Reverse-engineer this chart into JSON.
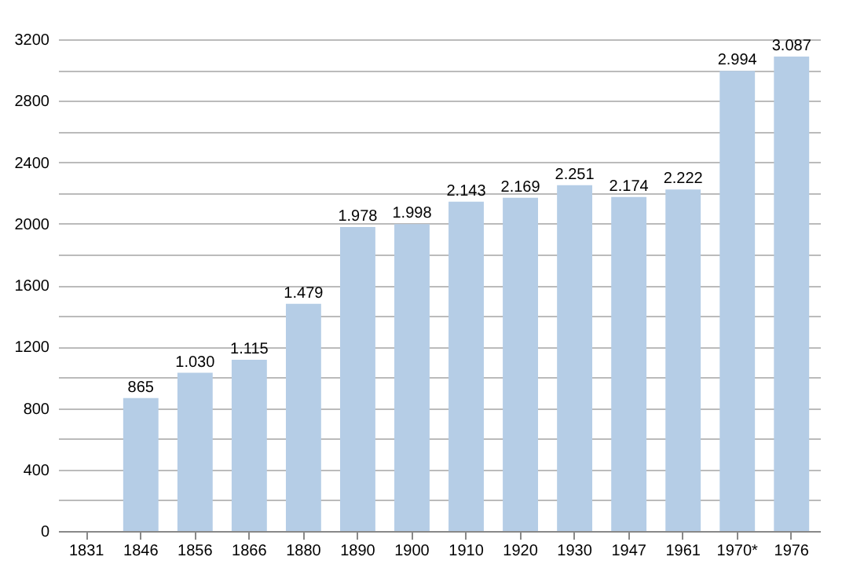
{
  "chart_data": {
    "type": "bar",
    "categories": [
      "1831",
      "1846",
      "1856",
      "1866",
      "1880",
      "1890",
      "1900",
      "1910",
      "1920",
      "1930",
      "1947",
      "1961",
      "1970*",
      "1976"
    ],
    "values": [
      null,
      865,
      1030,
      1115,
      1479,
      1978,
      1998,
      2143,
      2169,
      2251,
      2174,
      2222,
      2994,
      3087
    ],
    "value_labels": [
      null,
      "865",
      "1.030",
      "1.115",
      "1.479",
      "1.978",
      "1.998",
      "2.143",
      "2.169",
      "2.251",
      "2.174",
      "2.222",
      "2.994",
      "3.087"
    ],
    "color": "#b5cde6",
    "ylim": [
      0,
      3200
    ],
    "yticks": [
      0,
      {
        "value": 200,
        "label": null
      },
      400,
      {
        "value": 600,
        "label": null
      },
      800,
      {
        "value": 1000,
        "label": null
      },
      1200,
      {
        "value": 1400,
        "label": null
      },
      1600,
      {
        "value": 1800,
        "label": null
      },
      2000,
      {
        "value": 2200,
        "label": null
      },
      2400,
      {
        "value": 2600,
        "label": null
      },
      2800,
      {
        "value": 3000,
        "label": null
      },
      3200
    ],
    "grid": true
  }
}
